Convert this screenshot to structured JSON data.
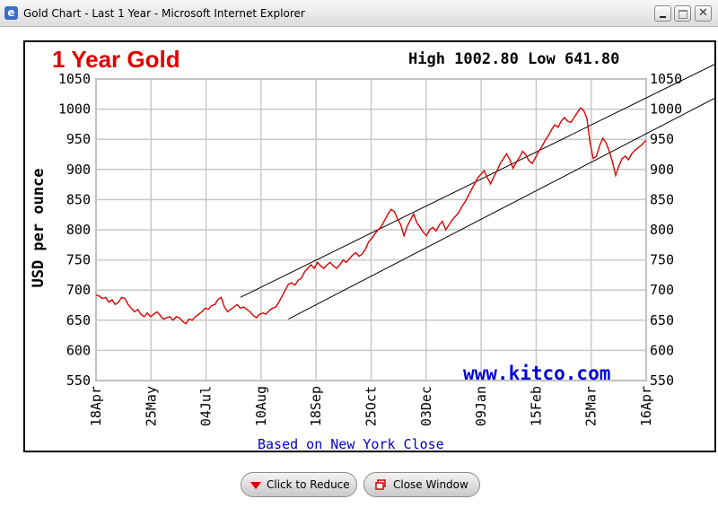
{
  "window": {
    "title": "Gold Chart - Last 1 Year - Microsoft Internet Explorer",
    "close_glyph": "✕",
    "icon_glyph": "e"
  },
  "chart_title": "1 Year Gold",
  "high_low": "High 1002.80 Low 641.80",
  "watermark": "www.kitco.com",
  "footnote": "Based on New York Close",
  "buttons": {
    "reduce": "Click to Reduce",
    "close": "Close Window"
  },
  "colors": {
    "title": "#e00000",
    "series": "#dd0000",
    "link": "#0000e0"
  },
  "chart_data": {
    "type": "line",
    "title": "1 Year Gold",
    "ylabel": "USD per ounce",
    "xlabel": "Based on New York Close",
    "ylim": [
      550,
      1050
    ],
    "y_ticks": [
      550,
      600,
      650,
      700,
      750,
      800,
      850,
      900,
      950,
      1000,
      1050
    ],
    "grid": true,
    "x_tick_labels": [
      "18Apr",
      "25May",
      "04Jul",
      "10Aug",
      "18Sep",
      "25Oct",
      "03Dec",
      "09Jan",
      "15Feb",
      "25Mar",
      "16Apr"
    ],
    "series": [
      {
        "values": [
          [
            0,
            692
          ],
          [
            2,
            690
          ],
          [
            4,
            686
          ],
          [
            6,
            688
          ],
          [
            8,
            680
          ],
          [
            10,
            684
          ],
          [
            12,
            676
          ],
          [
            14,
            680
          ],
          [
            16,
            688
          ],
          [
            18,
            686
          ],
          [
            20,
            676
          ],
          [
            22,
            670
          ],
          [
            24,
            664
          ],
          [
            26,
            668
          ],
          [
            28,
            660
          ],
          [
            30,
            656
          ],
          [
            32,
            662
          ],
          [
            34,
            656
          ],
          [
            36,
            660
          ],
          [
            38,
            664
          ],
          [
            40,
            658
          ],
          [
            42,
            652
          ],
          [
            44,
            654
          ],
          [
            46,
            656
          ],
          [
            48,
            650
          ],
          [
            50,
            656
          ],
          [
            52,
            654
          ],
          [
            54,
            648
          ],
          [
            56,
            644
          ],
          [
            58,
            652
          ],
          [
            60,
            650
          ],
          [
            62,
            656
          ],
          [
            64,
            660
          ],
          [
            66,
            664
          ],
          [
            68,
            670
          ],
          [
            70,
            668
          ],
          [
            72,
            674
          ],
          [
            74,
            676
          ],
          [
            76,
            684
          ],
          [
            78,
            688
          ],
          [
            80,
            672
          ],
          [
            82,
            664
          ],
          [
            84,
            668
          ],
          [
            86,
            672
          ],
          [
            88,
            676
          ],
          [
            90,
            670
          ],
          [
            92,
            672
          ],
          [
            94,
            668
          ],
          [
            96,
            664
          ],
          [
            98,
            658
          ],
          [
            100,
            654
          ],
          [
            102,
            660
          ],
          [
            104,
            662
          ],
          [
            106,
            660
          ],
          [
            108,
            666
          ],
          [
            110,
            670
          ],
          [
            112,
            672
          ],
          [
            114,
            680
          ],
          [
            116,
            690
          ],
          [
            118,
            700
          ],
          [
            120,
            710
          ],
          [
            122,
            712
          ],
          [
            124,
            708
          ],
          [
            126,
            716
          ],
          [
            128,
            720
          ],
          [
            130,
            730
          ],
          [
            132,
            736
          ],
          [
            134,
            742
          ],
          [
            136,
            736
          ],
          [
            138,
            746
          ],
          [
            140,
            740
          ],
          [
            142,
            736
          ],
          [
            144,
            742
          ],
          [
            146,
            746
          ],
          [
            148,
            740
          ],
          [
            150,
            736
          ],
          [
            152,
            742
          ],
          [
            154,
            750
          ],
          [
            156,
            746
          ],
          [
            158,
            752
          ],
          [
            160,
            758
          ],
          [
            162,
            762
          ],
          [
            164,
            756
          ],
          [
            166,
            760
          ],
          [
            168,
            768
          ],
          [
            170,
            780
          ],
          [
            172,
            786
          ],
          [
            174,
            794
          ],
          [
            176,
            800
          ],
          [
            178,
            806
          ],
          [
            180,
            816
          ],
          [
            182,
            826
          ],
          [
            184,
            834
          ],
          [
            186,
            830
          ],
          [
            188,
            818
          ],
          [
            190,
            808
          ],
          [
            192,
            790
          ],
          [
            194,
            806
          ],
          [
            196,
            816
          ],
          [
            198,
            826
          ],
          [
            200,
            812
          ],
          [
            202,
            804
          ],
          [
            204,
            796
          ],
          [
            206,
            790
          ],
          [
            208,
            800
          ],
          [
            210,
            804
          ],
          [
            212,
            798
          ],
          [
            214,
            808
          ],
          [
            216,
            814
          ],
          [
            218,
            800
          ],
          [
            220,
            808
          ],
          [
            222,
            816
          ],
          [
            224,
            822
          ],
          [
            226,
            828
          ],
          [
            228,
            838
          ],
          [
            230,
            846
          ],
          [
            232,
            856
          ],
          [
            234,
            866
          ],
          [
            236,
            876
          ],
          [
            238,
            886
          ],
          [
            240,
            892
          ],
          [
            242,
            898
          ],
          [
            244,
            886
          ],
          [
            246,
            876
          ],
          [
            248,
            888
          ],
          [
            250,
            898
          ],
          [
            252,
            910
          ],
          [
            254,
            918
          ],
          [
            256,
            926
          ],
          [
            258,
            916
          ],
          [
            260,
            902
          ],
          [
            262,
            912
          ],
          [
            264,
            920
          ],
          [
            266,
            930
          ],
          [
            268,
            924
          ],
          [
            270,
            914
          ],
          [
            272,
            910
          ],
          [
            274,
            920
          ],
          [
            276,
            930
          ],
          [
            278,
            938
          ],
          [
            280,
            948
          ],
          [
            282,
            956
          ],
          [
            284,
            966
          ],
          [
            286,
            974
          ],
          [
            288,
            970
          ],
          [
            290,
            980
          ],
          [
            292,
            986
          ],
          [
            294,
            980
          ],
          [
            296,
            978
          ],
          [
            298,
            986
          ],
          [
            300,
            994
          ],
          [
            302,
            1002
          ],
          [
            304,
            998
          ],
          [
            306,
            985
          ],
          [
            308,
            945
          ],
          [
            310,
            918
          ],
          [
            312,
            922
          ],
          [
            314,
            940
          ],
          [
            316,
            952
          ],
          [
            318,
            944
          ],
          [
            320,
            930
          ],
          [
            322,
            912
          ],
          [
            324,
            890
          ],
          [
            326,
            906
          ],
          [
            328,
            918
          ],
          [
            330,
            922
          ],
          [
            332,
            916
          ],
          [
            334,
            926
          ],
          [
            336,
            932
          ],
          [
            338,
            936
          ],
          [
            340,
            940
          ],
          [
            342,
            946
          ],
          [
            343,
            948
          ]
        ]
      }
    ],
    "annotations": [
      {
        "type": "trendline",
        "points": [
          [
            90,
            688
          ],
          [
            390,
            1080
          ]
        ]
      },
      {
        "type": "trendline",
        "points": [
          [
            120,
            652
          ],
          [
            390,
            1024
          ]
        ]
      }
    ]
  }
}
